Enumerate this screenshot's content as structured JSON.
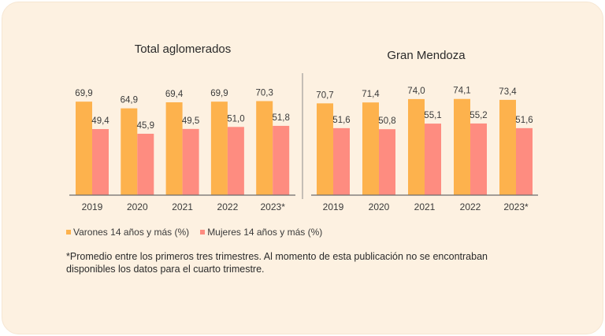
{
  "colors": {
    "varones": "#fdb24d",
    "mujeres": "#fe8c80",
    "axis": "#6b6b6b",
    "text": "#3a3a3a"
  },
  "chart_data": [
    {
      "type": "bar",
      "title": "Total aglomerados",
      "categories": [
        "2019",
        "2020",
        "2021",
        "2022",
        "2023*"
      ],
      "series": [
        {
          "name": "Varones 14 años y más (%)",
          "values": [
            69.9,
            64.9,
            69.4,
            69.9,
            70.3
          ],
          "labels": [
            "69,9",
            "64,9",
            "69,4",
            "69,9",
            "70,3"
          ]
        },
        {
          "name": "Mujeres 14 años y más (%)",
          "values": [
            49.4,
            45.9,
            49.5,
            51.0,
            51.8
          ],
          "labels": [
            "49,4",
            "45,9",
            "49,5",
            "51,0",
            "51,8"
          ]
        }
      ],
      "grid": false,
      "legend": "bottom"
    },
    {
      "type": "bar",
      "title": "Gran Mendoza",
      "categories": [
        "2019",
        "2020",
        "2021",
        "2022",
        "2023*"
      ],
      "series": [
        {
          "name": "Varones 14 años y más (%)",
          "values": [
            70.7,
            71.4,
            74.0,
            74.1,
            73.4
          ],
          "labels": [
            "70,7",
            "71,4",
            "74,0",
            "74,1",
            "73,4"
          ]
        },
        {
          "name": "Mujeres 14 años y más (%)",
          "values": [
            51.6,
            50.8,
            55.1,
            55.2,
            51.6
          ],
          "labels": [
            "51,6",
            "50,8",
            "55,1",
            "55,2",
            "51,6"
          ]
        }
      ],
      "grid": false,
      "legend": "bottom"
    }
  ],
  "legend": {
    "varones": "Varones 14 años y más (%)",
    "mujeres": "Mujeres 14 años y más (%)"
  },
  "note": "*Promedio entre los primeros tres trimestres.  Al momento de esta publicación no se encontraban disponibles los datos para el cuarto trimestre."
}
